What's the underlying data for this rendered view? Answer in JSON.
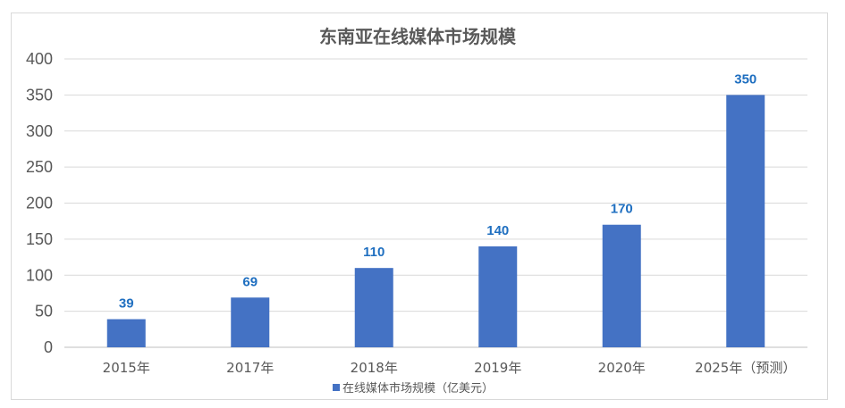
{
  "chart_data": {
    "type": "bar",
    "title": "东南亚在线媒体市场规模",
    "categories": [
      "2015年",
      "2017年",
      "2018年",
      "2019年",
      "2020年",
      "2025年（预测）"
    ],
    "series": [
      {
        "name": "在线媒体市场规模（亿美元）",
        "values": [
          39,
          69,
          110,
          140,
          170,
          350
        ],
        "color": "#4472c4"
      }
    ],
    "ylim": [
      0,
      400
    ],
    "yticks": [
      0,
      50,
      100,
      150,
      200,
      250,
      300,
      350,
      400
    ],
    "grid": true,
    "legend_position": "bottom",
    "data_label_color": "#1f6fc0"
  }
}
